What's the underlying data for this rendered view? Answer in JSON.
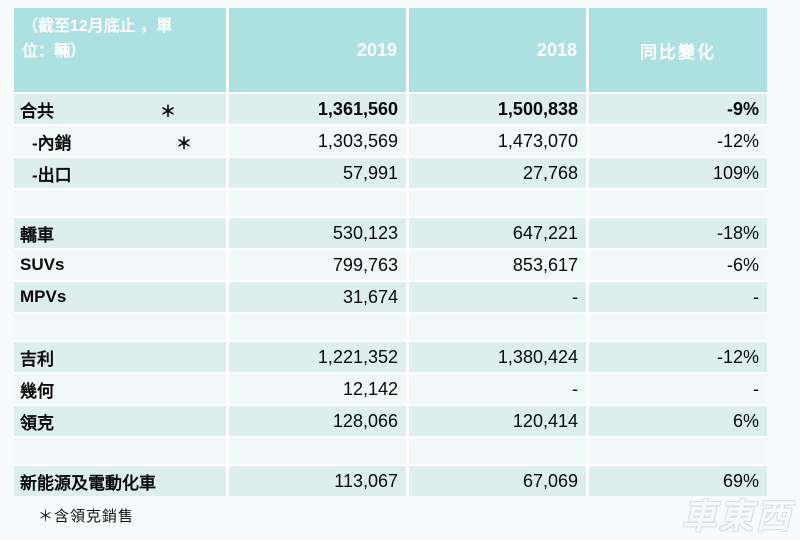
{
  "table": {
    "header": {
      "title": "（截至12月底止 ，單\n位：輛）",
      "col_2019": "2019",
      "col_2018": "2018",
      "col_change": "同比變化"
    },
    "rows": [
      {
        "label": "合共",
        "asterisk": "＊",
        "y2019": "1,361,560",
        "y2018": "1,500,838",
        "change": "-9%",
        "bold": true
      },
      {
        "label": "-內銷",
        "asterisk": "＊",
        "y2019": "1,303,569",
        "y2018": "1,473,070",
        "change": "-12%",
        "indent": true
      },
      {
        "label": "-出口",
        "y2019": "57,991",
        "y2018": "27,768",
        "change": "109%",
        "indent": true
      },
      {
        "spacer": true
      },
      {
        "label": "轎車",
        "y2019": "530,123",
        "y2018": "647,221",
        "change": "-18%"
      },
      {
        "label": "SUVs",
        "y2019": "799,763",
        "y2018": "853,617",
        "change": "-6%"
      },
      {
        "label": "MPVs",
        "y2019": "31,674",
        "y2018": "-",
        "change": "-"
      },
      {
        "spacer": true
      },
      {
        "label": "吉利",
        "y2019": "1,221,352",
        "y2018": "1,380,424",
        "change": "-12%"
      },
      {
        "label": "幾何",
        "y2019": "12,142",
        "y2018": "-",
        "change": "-"
      },
      {
        "label": "領克",
        "y2019": "128,066",
        "y2018": "120,414",
        "change": "6%"
      },
      {
        "spacer": true
      },
      {
        "label": "新能源及電動化車",
        "y2019": "113,067",
        "y2018": "67,069",
        "change": "69%"
      }
    ]
  },
  "footnote": "＊含領克銷售",
  "watermark": "車東西",
  "colors": {
    "page_bg": "#f8fbfb",
    "header_bg": "#ace0e1",
    "header_text": "#ffffff",
    "row_tint": "#ddeeed",
    "row_light": "#f0f8f8",
    "body_text": "#0a0a0a"
  },
  "chart_data": {
    "type": "table",
    "title": "（截至12月底止 ，單位：輛）",
    "columns": [
      "",
      "2019",
      "2018",
      "同比變化"
    ],
    "rows": [
      {
        "label": "合共＊",
        "y2019": 1361560,
        "y2018": 1500838,
        "yoy_change": "-9%"
      },
      {
        "label": "-內銷＊",
        "y2019": 1303569,
        "y2018": 1473070,
        "yoy_change": "-12%"
      },
      {
        "label": "-出口",
        "y2019": 57991,
        "y2018": 27768,
        "yoy_change": "109%"
      },
      {
        "label": "轎車",
        "y2019": 530123,
        "y2018": 647221,
        "yoy_change": "-18%"
      },
      {
        "label": "SUVs",
        "y2019": 799763,
        "y2018": 853617,
        "yoy_change": "-6%"
      },
      {
        "label": "MPVs",
        "y2019": 31674,
        "y2018": null,
        "yoy_change": "-"
      },
      {
        "label": "吉利",
        "y2019": 1221352,
        "y2018": 1380424,
        "yoy_change": "-12%"
      },
      {
        "label": "幾何",
        "y2019": 12142,
        "y2018": null,
        "yoy_change": "-"
      },
      {
        "label": "領克",
        "y2019": 128066,
        "y2018": 120414,
        "yoy_change": "6%"
      },
      {
        "label": "新能源及電動化車",
        "y2019": 113067,
        "y2018": 67069,
        "yoy_change": "69%"
      }
    ],
    "footnote": "＊含領克銷售",
    "layout": {
      "bold_rows": [
        "合共＊"
      ],
      "empty_separator_after": [
        "-出口",
        "MPVs",
        "領克"
      ]
    }
  }
}
